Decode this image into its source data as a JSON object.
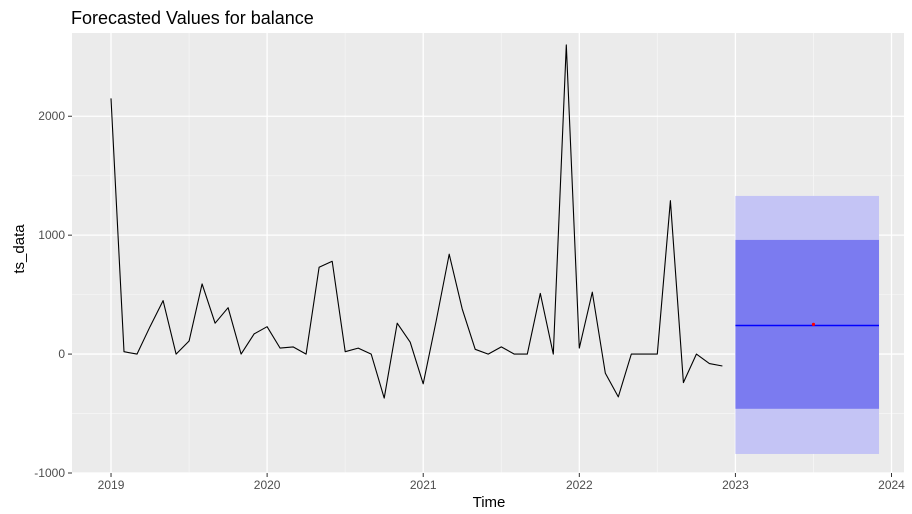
{
  "chart_data": {
    "type": "line",
    "title": "Forecasted Values for  balance",
    "xlabel": "Time",
    "ylabel": "ts_data",
    "xlim": [
      2018.75,
      2024.08
    ],
    "ylim": [
      -1000,
      2700
    ],
    "x_ticks": [
      {
        "value": 2019,
        "label": "2019"
      },
      {
        "value": 2020,
        "label": "2020"
      },
      {
        "value": 2021,
        "label": "2021"
      },
      {
        "value": 2022,
        "label": "2022"
      },
      {
        "value": 2023,
        "label": "2023"
      },
      {
        "value": 2024,
        "label": "2024"
      }
    ],
    "y_ticks": [
      {
        "value": -1000,
        "label": "-1000"
      },
      {
        "value": 0,
        "label": "0"
      },
      {
        "value": 1000,
        "label": "1000"
      },
      {
        "value": 2000,
        "label": "2000"
      }
    ],
    "grid": true,
    "series": [
      {
        "kind": "history",
        "color": "#000000",
        "start": 2019,
        "step": 0.08333,
        "values": [
          2150,
          20,
          0,
          230,
          450,
          0,
          110,
          590,
          260,
          390,
          0,
          170,
          230,
          50,
          60,
          0,
          730,
          780,
          20,
          50,
          0,
          -370,
          260,
          100,
          -250,
          280,
          840,
          380,
          40,
          0,
          60,
          0,
          0,
          510,
          0,
          2600,
          50,
          520,
          -160,
          -360,
          0,
          0,
          0,
          1290,
          -240,
          0,
          -80,
          -100
        ]
      },
      {
        "kind": "forecast",
        "color": "#0000ff",
        "x": [
          2023.0,
          2023.92
        ],
        "values": [
          240,
          240
        ]
      }
    ],
    "forecast_bands": [
      {
        "level": "95",
        "color": "#c4c4f5",
        "x": [
          2023.0,
          2023.92
        ],
        "lower": -840,
        "upper": 1330
      },
      {
        "level": "80",
        "color": "#7b7bf0",
        "x": [
          2023.0,
          2023.92
        ],
        "lower": -460,
        "upper": 960
      }
    ],
    "forecast_marker": {
      "x": 2023.5,
      "y": 250,
      "color": "#ff0000"
    }
  }
}
